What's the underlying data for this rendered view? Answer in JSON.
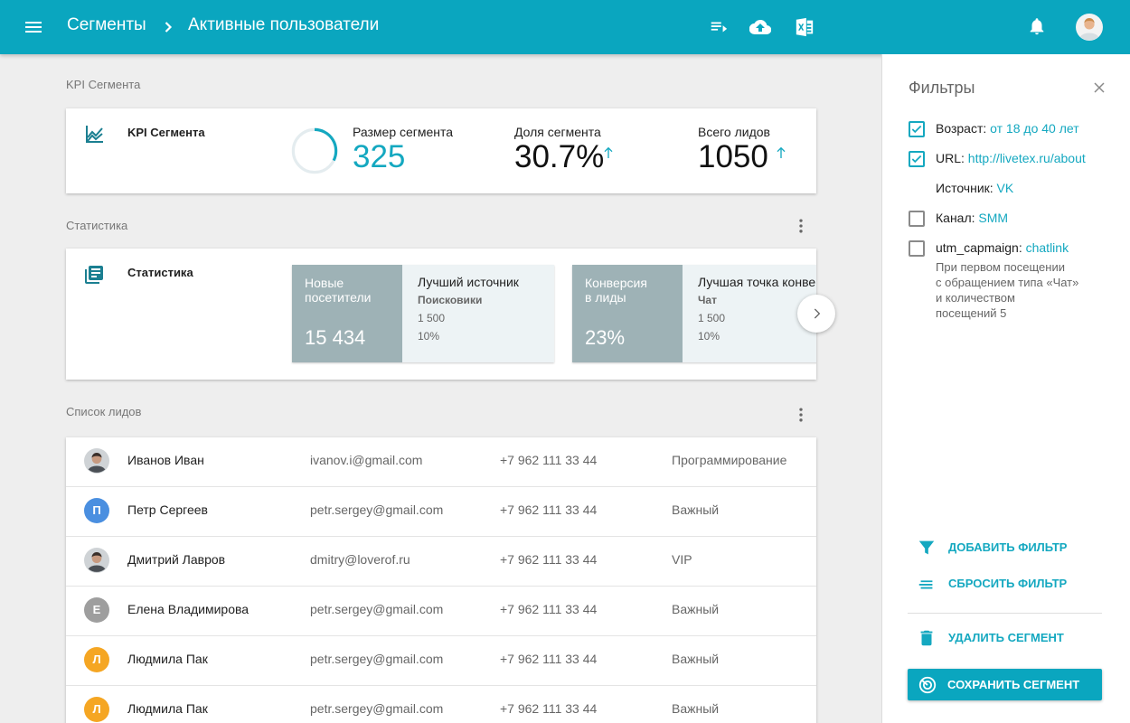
{
  "header": {
    "breadcrumb": [
      "Сегменты",
      "Активные пользователи"
    ]
  },
  "kpi": {
    "section_title": "KPI Сегмента",
    "card_title": "KPI Сегмента",
    "metrics": [
      {
        "label": "Размер сегмента",
        "value": "325"
      },
      {
        "label": "Доля сегмента",
        "value": "30.7%"
      },
      {
        "label": "Всего лидов",
        "value": "1050"
      }
    ]
  },
  "statistics": {
    "section_title": "Статистика",
    "card_title": "Статистика",
    "cards": [
      {
        "label": "Новые посетители",
        "value": "15 434",
        "detail_title": "Лучший источник",
        "detail_name": "Поисковики",
        "detail_count": "1 500",
        "detail_share": "10%"
      },
      {
        "label": "Конверсия в лиды",
        "value": "23%",
        "detail_title": "Лучшая точка конве",
        "detail_name": "Чат",
        "detail_count": "1 500",
        "detail_share": "10%"
      }
    ]
  },
  "leads": {
    "section_title": "Список лидов",
    "rows": [
      {
        "name": "Иванов Иван",
        "email": "ivanov.i@gmail.com",
        "phone": "+7 962 111 33 44",
        "tag": "Программирование"
      },
      {
        "avatar": "П",
        "avatar_color": "#4a8fe0",
        "name": "Петр Сергеев",
        "email": "petr.sergey@gmail.com",
        "phone": "+7 962 111 33 44",
        "tag": "Важный"
      },
      {
        "name": "Дмитрий Лавров",
        "email": "dmitry@loverof.ru",
        "phone": "+7 962 111 33 44",
        "tag": "VIP"
      },
      {
        "avatar": "Е",
        "avatar_color": "#9e9e9e",
        "name": "Елена Владимирова",
        "email": "petr.sergey@gmail.com",
        "phone": "+7 962 111 33 44",
        "tag": "Важный"
      },
      {
        "avatar": "Л",
        "avatar_color": "#f5a623",
        "name": "Людмила Пак",
        "email": "petr.sergey@gmail.com",
        "phone": "+7 962 111 33 44",
        "tag": "Важный"
      },
      {
        "avatar": "Л",
        "avatar_color": "#f5a623",
        "name": "Людмила Пак",
        "email": "petr.sergey@gmail.com",
        "phone": "+7 962 111 33 44",
        "tag": "Важный"
      }
    ]
  },
  "filters": {
    "title": "Фильтры",
    "items": [
      {
        "label": "Возраст:",
        "value": "от 18 до 40 лет",
        "checked": true
      },
      {
        "label": "URL:",
        "value": "http://livetex.ru/about",
        "checked": true
      },
      {
        "label": "Источник:",
        "value": "VK"
      },
      {
        "label": "Канал:",
        "value": "SMM",
        "checked": false
      },
      {
        "label": "utm_capmaign:",
        "value": "chatlink",
        "checked": false,
        "description": [
          "При первом посещении",
          "с обращением типа «Чат»",
          "и количеством",
          "посещений 5"
        ]
      }
    ],
    "actions": [
      "ДОБАВИТЬ ФИЛЬТР",
      "СБРОСИТЬ ФИЛЬТР",
      "УДАЛИТЬ СЕГМЕНТ"
    ],
    "save": "СОХРАНИТЬ СЕГМЕНТ"
  }
}
